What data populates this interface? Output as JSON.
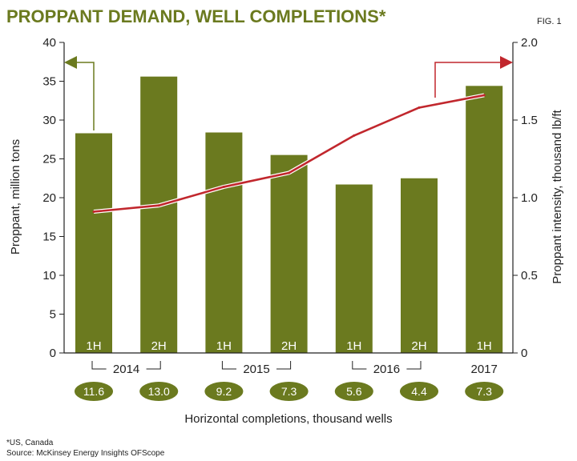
{
  "header": {
    "title": "PROPPANT DEMAND, WELL COMPLETIONS*",
    "fig_label": "FIG. 1"
  },
  "colors": {
    "bar": "#6b7a1f",
    "line": "#c1272d",
    "axis": "#222222",
    "text": "#222222"
  },
  "chart_data": {
    "type": "bar",
    "categories": [
      "1H 2014",
      "2H 2014",
      "1H 2015",
      "2H 2015",
      "1H 2016",
      "2H 2016",
      "1H 2017"
    ],
    "half_labels": [
      "1H",
      "2H",
      "1H",
      "2H",
      "1H",
      "2H",
      "1H"
    ],
    "year_groups": [
      {
        "label": "2014",
        "bracket": true
      },
      {
        "label": "2015",
        "bracket": true
      },
      {
        "label": "2016",
        "bracket": true
      },
      {
        "label": "2017",
        "bracket": false
      }
    ],
    "series": [
      {
        "name": "Proppant, million tons",
        "type": "bar",
        "axis": "left",
        "values": [
          28.3,
          35.6,
          28.4,
          25.5,
          21.7,
          22.5,
          34.4
        ]
      },
      {
        "name": "Proppant intensity, thousand lb/ft",
        "type": "line",
        "axis": "right",
        "values": [
          0.91,
          0.95,
          1.07,
          1.16,
          1.4,
          1.58,
          1.66
        ]
      }
    ],
    "completions": {
      "label": "Horizontal completions, thousand wells",
      "values": [
        "11.6",
        "13.0",
        "9.2",
        "7.3",
        "5.6",
        "4.4",
        "7.3"
      ]
    },
    "y_left": {
      "label": "Proppant, million tons",
      "lim": [
        0,
        40
      ],
      "ticks": [
        "0",
        "5",
        "10",
        "15",
        "20",
        "25",
        "30",
        "35",
        "40"
      ]
    },
    "y_right": {
      "label": "Proppant intensity, thousand lb/ft",
      "lim": [
        0,
        2.0
      ],
      "ticks": [
        "0",
        "0.5",
        "1.0",
        "1.5",
        "2.0"
      ]
    },
    "xlabel": "Horizontal completions, thousand wells",
    "legend": "arrows indicate axis: bars on left, line on right"
  },
  "footnotes": {
    "note": "*US, Canada",
    "source": "Source: McKinsey Energy Insights OFScope"
  }
}
